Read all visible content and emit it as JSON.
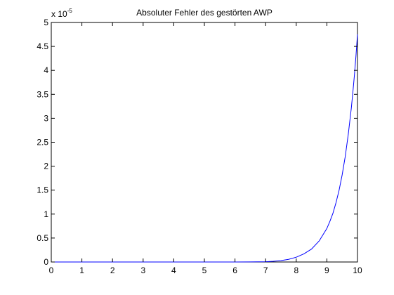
{
  "chart_data": {
    "type": "line",
    "title": "Absoluter Fehler des gestörten AWP",
    "xlabel": "",
    "ylabel": "",
    "xlim": [
      0,
      10
    ],
    "ylim": [
      0,
      5
    ],
    "x_ticks": [
      0,
      1,
      2,
      3,
      4,
      5,
      6,
      7,
      8,
      9,
      10
    ],
    "y_ticks": [
      0,
      0.5,
      1,
      1.5,
      2,
      2.5,
      3,
      3.5,
      4,
      4.5,
      5
    ],
    "x_tick_labels": [
      "0",
      "1",
      "2",
      "3",
      "4",
      "5",
      "6",
      "7",
      "8",
      "9",
      "10"
    ],
    "y_tick_labels": [
      "0",
      "0.5",
      "1",
      "1.5",
      "2",
      "2.5",
      "3",
      "3.5",
      "4",
      "4.5",
      "5"
    ],
    "y_exponent_label": {
      "base": "x 10",
      "exponent": "-5"
    },
    "grid": false,
    "legend": "none",
    "series": [
      {
        "color": "#0000ff",
        "x": [
          0,
          1,
          2,
          3,
          4,
          5,
          6,
          6.5,
          7,
          7.25,
          7.5,
          7.75,
          8,
          8.25,
          8.5,
          8.75,
          9,
          9.1,
          9.2,
          9.3,
          9.4,
          9.5,
          9.6,
          9.7,
          9.8,
          9.85,
          9.9,
          9.95,
          10
        ],
        "y": [
          0,
          0,
          0,
          0,
          0.0001,
          0.0002,
          0.0005,
          0.001,
          0.005,
          0.015,
          0.03,
          0.055,
          0.1,
          0.17,
          0.27,
          0.44,
          0.7,
          0.85,
          1.02,
          1.24,
          1.5,
          1.82,
          2.2,
          2.67,
          3.22,
          3.55,
          3.9,
          4.3,
          4.75
        ]
      }
    ],
    "colors": {
      "line": "#0000ff",
      "axes": "#000000",
      "background": "#ffffff"
    }
  }
}
